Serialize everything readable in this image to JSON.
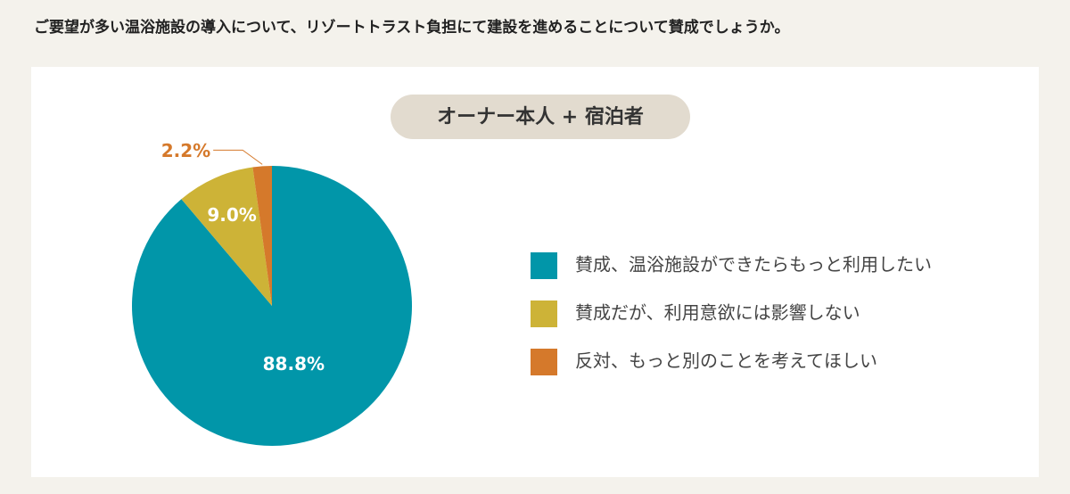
{
  "question": "ご要望が多い温浴施設の導入について、リゾートトラスト負担にて建設を進めることについて賛成でしょうか。",
  "chart_data": {
    "type": "pie",
    "title": "オーナー本人 + 宿泊者",
    "categories": [
      "賛成、温浴施設ができたらもっと利用したい",
      "賛成だが、利用意欲には影響しない",
      "反対、もっと別のことを考えてほしい"
    ],
    "values": [
      88.8,
      9.0,
      2.2
    ],
    "value_labels": [
      "88.8%",
      "9.0%",
      "2.2%"
    ],
    "colors": [
      "#0196a9",
      "#cdb337",
      "#d5792b"
    ]
  }
}
